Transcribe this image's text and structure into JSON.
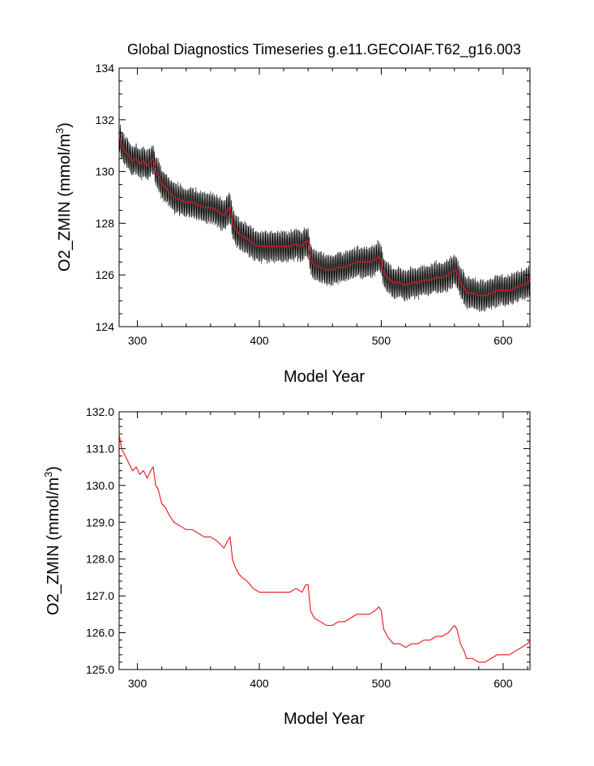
{
  "title": "Global Diagnostics Timeseries g.e11.GECOIAF.T62_g16.003",
  "colors": {
    "raw_series": "#000000",
    "annual_mean_series": "#e8121a",
    "axes": "#000000",
    "background": "#ffffff"
  },
  "chart_data": [
    {
      "type": "line",
      "title": "Global Diagnostics Timeseries g.e11.GECOIAF.T62_g16.003",
      "xlabel": "Model Year",
      "ylabel_main": "O2_ZMIN (mmol/m",
      "ylabel_sup": "3",
      "ylabel_close": ")",
      "xlim": [
        285,
        622
      ],
      "ylim": [
        124,
        134
      ],
      "xticks": [
        300,
        400,
        500,
        600
      ],
      "yticks": [
        124,
        126,
        128,
        130,
        132,
        134
      ],
      "ytick_labels": [
        "124",
        "126",
        "128",
        "130",
        "132",
        "134"
      ],
      "grid": false,
      "series": [
        {
          "style": "monthly values oscillating about the annual mean",
          "color": "#000000",
          "seasonal_half_amplitude": 0.55
        },
        {
          "style": "annual mean",
          "color": "#e8121a"
        }
      ]
    },
    {
      "type": "line",
      "xlabel": "Model Year",
      "ylabel_main": "O2_ZMIN (mmol/m",
      "ylabel_sup": "3",
      "ylabel_close": ")",
      "xlim": [
        285,
        622
      ],
      "ylim": [
        125,
        132
      ],
      "xticks": [
        300,
        400,
        500,
        600
      ],
      "yticks": [
        125,
        126,
        127,
        128,
        129,
        130,
        131,
        132
      ],
      "ytick_labels": [
        "125.0",
        "126.0",
        "127.0",
        "128.0",
        "129.0",
        "130.0",
        "131.0",
        "132.0"
      ],
      "grid": false,
      "series": [
        {
          "style": "annual mean",
          "color": "#e8121a",
          "x": [
            285,
            287,
            290,
            293,
            296,
            299,
            302,
            305,
            308,
            311,
            313,
            315,
            317,
            320,
            323,
            326,
            330,
            335,
            340,
            345,
            350,
            355,
            360,
            365,
            368,
            371,
            374,
            376,
            378,
            380,
            383,
            386,
            390,
            395,
            400,
            405,
            410,
            415,
            420,
            425,
            430,
            435,
            438,
            440,
            442,
            445,
            450,
            455,
            460,
            465,
            470,
            475,
            480,
            485,
            490,
            495,
            498,
            500,
            502,
            505,
            510,
            515,
            520,
            525,
            530,
            535,
            540,
            545,
            550,
            555,
            560,
            562,
            565,
            568,
            570,
            575,
            580,
            585,
            590,
            595,
            600,
            605,
            610,
            615,
            620,
            622
          ],
          "y": [
            131.4,
            131.0,
            130.8,
            130.6,
            130.4,
            130.5,
            130.3,
            130.4,
            130.2,
            130.4,
            130.5,
            130.0,
            129.9,
            129.5,
            129.4,
            129.2,
            129.0,
            128.9,
            128.8,
            128.8,
            128.7,
            128.6,
            128.6,
            128.5,
            128.4,
            128.3,
            128.5,
            128.6,
            128.0,
            127.8,
            127.6,
            127.5,
            127.4,
            127.2,
            127.1,
            127.1,
            127.1,
            127.1,
            127.1,
            127.1,
            127.2,
            127.1,
            127.3,
            127.3,
            126.6,
            126.4,
            126.3,
            126.2,
            126.2,
            126.3,
            126.3,
            126.4,
            126.5,
            126.5,
            126.5,
            126.6,
            126.7,
            126.6,
            126.1,
            125.9,
            125.7,
            125.7,
            125.6,
            125.7,
            125.7,
            125.8,
            125.8,
            125.9,
            125.9,
            126.0,
            126.2,
            126.1,
            125.7,
            125.5,
            125.3,
            125.3,
            125.2,
            125.2,
            125.3,
            125.4,
            125.4,
            125.4,
            125.5,
            125.6,
            125.7,
            125.8
          ]
        }
      ]
    }
  ]
}
